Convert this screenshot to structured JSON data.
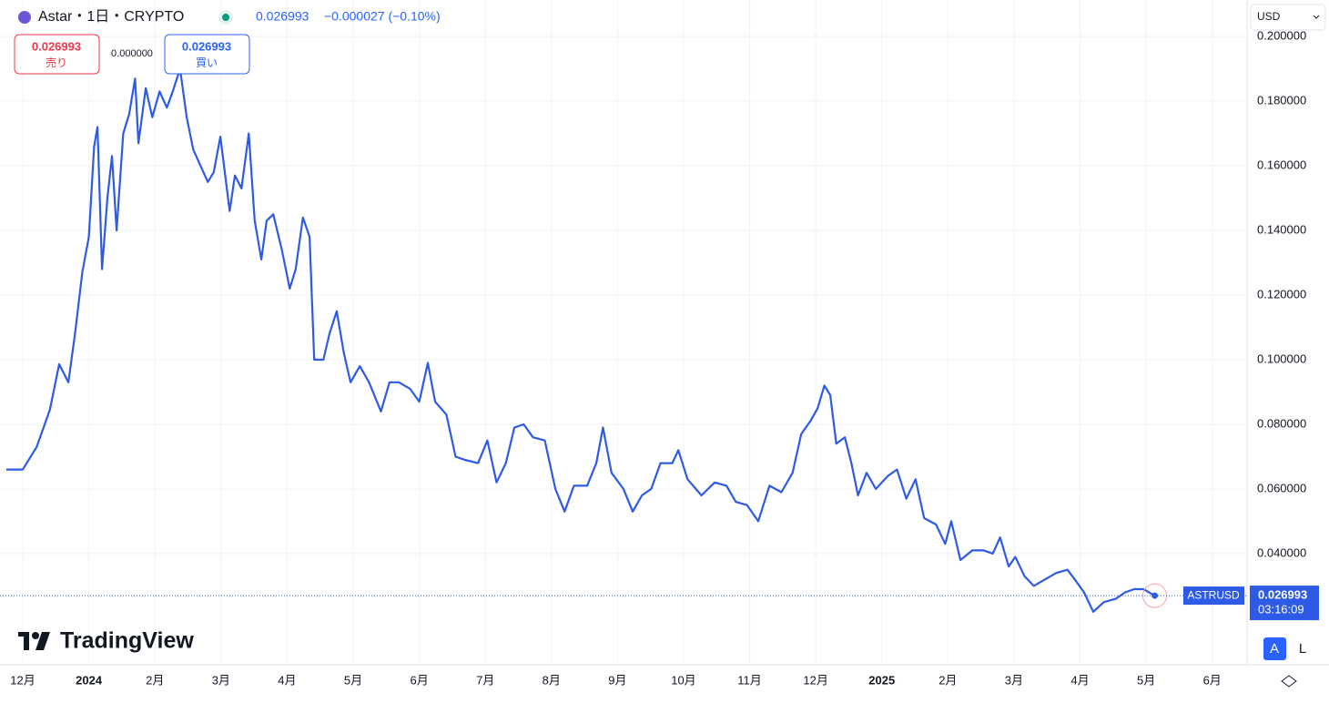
{
  "ui": {
    "header": {
      "symbol": "Astar・1日・CRYPTO",
      "price": "0.026993",
      "change": "−0.000027 (−0.10%)"
    },
    "sell": {
      "price": "0.026993",
      "label": "売り"
    },
    "spread": "0.000000",
    "buy": {
      "price": "0.026993",
      "label": "買い"
    },
    "currency": "USD",
    "countdown": "03:16:09",
    "brand": "TradingView",
    "buttons": [
      "A",
      "L"
    ]
  },
  "chart_data": {
    "type": "line",
    "grid": true,
    "last_price": 0.026993,
    "xlim": [
      -0.276,
      18.5
    ],
    "ylim": [
      0.0056,
      0.2113
    ],
    "xticks": [
      {
        "value": 0,
        "label": "12月"
      },
      {
        "value": 1,
        "label": "2024"
      },
      {
        "value": 2,
        "label": "2月"
      },
      {
        "value": 3,
        "label": "3月"
      },
      {
        "value": 4,
        "label": "4月"
      },
      {
        "value": 5,
        "label": "5月"
      },
      {
        "value": 6,
        "label": "6月"
      },
      {
        "value": 7,
        "label": "7月"
      },
      {
        "value": 8,
        "label": "8月"
      },
      {
        "value": 9,
        "label": "9月"
      },
      {
        "value": 10,
        "label": "10月"
      },
      {
        "value": 11,
        "label": "11月"
      },
      {
        "value": 12,
        "label": "12月"
      },
      {
        "value": 13,
        "label": "2025"
      },
      {
        "value": 14,
        "label": "2月"
      },
      {
        "value": 15,
        "label": "3月"
      },
      {
        "value": 16,
        "label": "4月"
      },
      {
        "value": 17,
        "label": "5月"
      },
      {
        "value": 18,
        "label": "6月"
      }
    ],
    "yticks": [
      {
        "value": 0.04,
        "label": "0.040000"
      },
      {
        "value": 0.06,
        "label": "0.060000"
      },
      {
        "value": 0.08,
        "label": "0.080000"
      },
      {
        "value": 0.1,
        "label": "0.100000"
      },
      {
        "value": 0.12,
        "label": "0.120000"
      },
      {
        "value": 0.14,
        "label": "0.140000"
      },
      {
        "value": 0.16,
        "label": "0.160000"
      },
      {
        "value": 0.18,
        "label": "0.180000"
      },
      {
        "value": 0.2,
        "label": "0.200000"
      }
    ],
    "series": [
      {
        "name": "ASTRUSD",
        "color": "#2e5be6",
        "x": [
          -0.25,
          0,
          0.21,
          0.41,
          0.55,
          0.69,
          0.79,
          0.9,
          1.0,
          1.08,
          1.13,
          1.2,
          1.28,
          1.35,
          1.42,
          1.52,
          1.61,
          1.7,
          1.75,
          1.86,
          1.96,
          2.07,
          2.18,
          2.27,
          2.38,
          2.48,
          2.58,
          2.69,
          2.8,
          2.89,
          2.99,
          3.13,
          3.21,
          3.31,
          3.42,
          3.51,
          3.61,
          3.69,
          3.79,
          3.92,
          4.04,
          4.13,
          4.24,
          4.34,
          4.41,
          4.55,
          4.64,
          4.75,
          4.86,
          4.96,
          5.1,
          5.24,
          5.42,
          5.55,
          5.69,
          5.86,
          6.0,
          6.13,
          6.24,
          6.41,
          6.55,
          6.69,
          6.89,
          7.03,
          7.17,
          7.31,
          7.44,
          7.58,
          7.72,
          7.9,
          8.06,
          8.2,
          8.34,
          8.54,
          8.68,
          8.78,
          8.91,
          9.09,
          9.23,
          9.37,
          9.51,
          9.65,
          9.83,
          9.92,
          10.06,
          10.27,
          10.47,
          10.65,
          10.79,
          10.96,
          11.13,
          11.3,
          11.48,
          11.65,
          11.78,
          11.92,
          12.03,
          12.13,
          12.22,
          12.31,
          12.44,
          12.54,
          12.64,
          12.77,
          12.91,
          13.09,
          13.23,
          13.37,
          13.51,
          13.64,
          13.82,
          13.96,
          14.05,
          14.19,
          14.37,
          14.54,
          14.68,
          14.79,
          14.92,
          15.02,
          15.16,
          15.3,
          15.47,
          15.64,
          15.81,
          15.92,
          16.06,
          16.2,
          16.36,
          16.54,
          16.68,
          16.82,
          16.96,
          17.13
        ],
        "values": [
          0.066,
          0.066,
          0.073,
          0.0845,
          0.0986,
          0.093,
          0.108,
          0.127,
          0.138,
          0.166,
          0.172,
          0.128,
          0.15,
          0.163,
          0.14,
          0.17,
          0.176,
          0.187,
          0.167,
          0.184,
          0.175,
          0.183,
          0.178,
          0.183,
          0.19,
          0.175,
          0.165,
          0.16,
          0.155,
          0.158,
          0.169,
          0.146,
          0.157,
          0.153,
          0.17,
          0.143,
          0.131,
          0.143,
          0.145,
          0.134,
          0.122,
          0.128,
          0.144,
          0.138,
          0.1,
          0.1,
          0.108,
          0.115,
          0.102,
          0.093,
          0.098,
          0.093,
          0.084,
          0.093,
          0.093,
          0.091,
          0.087,
          0.099,
          0.087,
          0.083,
          0.07,
          0.069,
          0.068,
          0.075,
          0.062,
          0.068,
          0.079,
          0.08,
          0.076,
          0.075,
          0.06,
          0.053,
          0.061,
          0.061,
          0.068,
          0.079,
          0.065,
          0.06,
          0.053,
          0.058,
          0.06,
          0.068,
          0.068,
          0.072,
          0.063,
          0.058,
          0.062,
          0.061,
          0.056,
          0.055,
          0.05,
          0.061,
          0.059,
          0.065,
          0.077,
          0.081,
          0.085,
          0.092,
          0.089,
          0.074,
          0.076,
          0.068,
          0.058,
          0.065,
          0.06,
          0.064,
          0.066,
          0.057,
          0.063,
          0.051,
          0.049,
          0.043,
          0.05,
          0.038,
          0.041,
          0.041,
          0.04,
          0.045,
          0.036,
          0.039,
          0.033,
          0.03,
          0.032,
          0.034,
          0.035,
          0.032,
          0.028,
          0.022,
          0.025,
          0.026,
          0.028,
          0.029,
          0.029,
          0.026993
        ]
      }
    ]
  }
}
